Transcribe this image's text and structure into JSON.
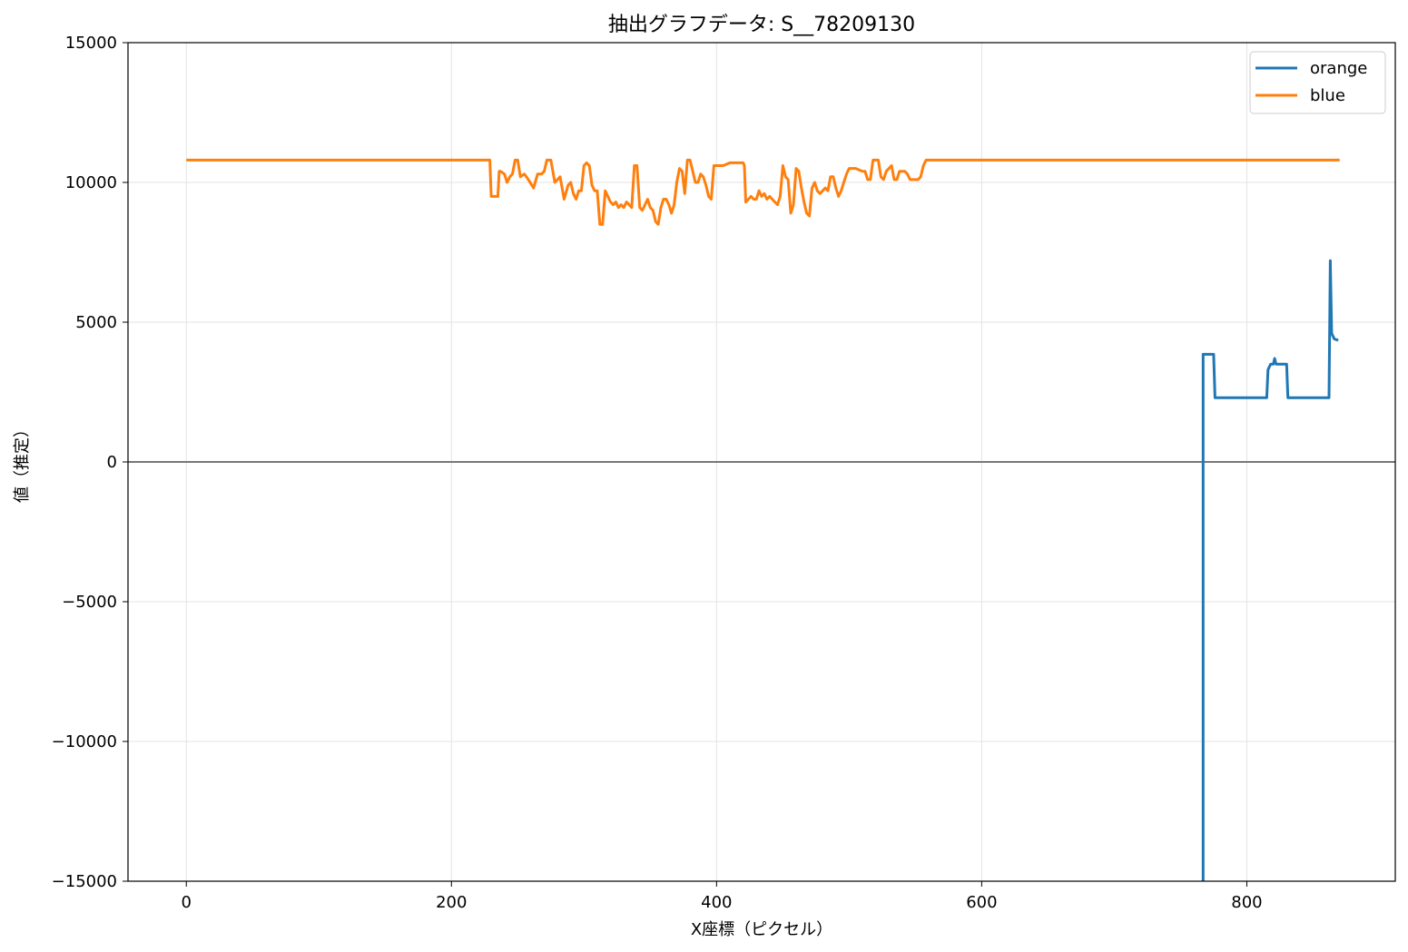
{
  "chart_data": {
    "type": "line",
    "title": "抽出グラフデータ: S__78209130",
    "xlabel": "X座標（ピクセル）",
    "ylabel": "値（推定）",
    "xlim": [
      -44,
      912
    ],
    "ylim": [
      -15000,
      15000
    ],
    "xticks": [
      0,
      200,
      400,
      600,
      800
    ],
    "yticks": [
      -15000,
      -10000,
      -5000,
      0,
      5000,
      10000,
      15000
    ],
    "ytick_labels": [
      "−15000",
      "−10000",
      "−5000",
      "0",
      "5000",
      "10000",
      "15000"
    ],
    "grid": true,
    "zero_line": true,
    "legend_position": "top-right",
    "series": [
      {
        "name": "orange",
        "color": "#1f77b4",
        "x": [
          767,
          767,
          768,
          775,
          776,
          815,
          816,
          818,
          820,
          821,
          822,
          823,
          830,
          831,
          862,
          863,
          864,
          866,
          869
        ],
        "y": [
          -15000,
          3850,
          3850,
          3850,
          2300,
          2300,
          3300,
          3500,
          3500,
          3700,
          3500,
          3500,
          3500,
          2300,
          2300,
          7200,
          4600,
          4400,
          4350
        ]
      },
      {
        "name": "blue",
        "color": "#ff7f0e",
        "x": [
          0,
          228,
          229,
          230,
          235,
          236,
          237,
          240,
          242,
          244,
          246,
          248,
          250,
          252,
          255,
          258,
          262,
          265,
          268,
          270,
          272,
          275,
          278,
          282,
          285,
          288,
          290,
          292,
          294,
          296,
          298,
          300,
          302,
          304,
          306,
          308,
          310,
          312,
          314,
          316,
          318,
          320,
          322,
          324,
          326,
          328,
          330,
          332,
          334,
          336,
          338,
          340,
          342,
          344,
          346,
          348,
          350,
          352,
          354,
          356,
          358,
          360,
          362,
          364,
          366,
          368,
          370,
          372,
          374,
          376,
          378,
          380,
          382,
          384,
          386,
          388,
          390,
          392,
          394,
          396,
          398,
          400,
          405,
          410,
          415,
          420,
          421,
          422,
          424,
          426,
          428,
          430,
          432,
          434,
          436,
          438,
          440,
          442,
          444,
          446,
          448,
          450,
          452,
          454,
          456,
          458,
          460,
          462,
          464,
          466,
          468,
          470,
          472,
          474,
          476,
          478,
          480,
          482,
          484,
          486,
          488,
          490,
          492,
          494,
          496,
          498,
          500,
          505,
          510,
          512,
          514,
          516,
          518,
          520,
          522,
          524,
          526,
          528,
          530,
          532,
          534,
          536,
          538,
          540,
          542,
          544,
          546,
          548,
          550,
          552,
          554,
          556,
          558,
          870
        ],
        "y": [
          10800,
          10800,
          10800,
          9500,
          9500,
          10400,
          10400,
          10300,
          10000,
          10200,
          10300,
          10800,
          10800,
          10200,
          10300,
          10100,
          9800,
          10300,
          10300,
          10400,
          10800,
          10800,
          10000,
          10200,
          9400,
          9900,
          10000,
          9600,
          9400,
          9700,
          9700,
          10600,
          10700,
          10600,
          9900,
          9700,
          9700,
          8500,
          8500,
          9700,
          9500,
          9300,
          9200,
          9300,
          9100,
          9200,
          9100,
          9300,
          9200,
          9100,
          10600,
          10600,
          9100,
          9000,
          9200,
          9400,
          9100,
          9000,
          8600,
          8500,
          9100,
          9400,
          9400,
          9200,
          8900,
          9200,
          10000,
          10500,
          10400,
          9600,
          10800,
          10800,
          10400,
          10000,
          10000,
          10300,
          10200,
          9900,
          9500,
          9400,
          10600,
          10600,
          10600,
          10700,
          10700,
          10700,
          10600,
          9300,
          9400,
          9500,
          9400,
          9400,
          9700,
          9500,
          9600,
          9400,
          9500,
          9400,
          9300,
          9200,
          9500,
          10600,
          10200,
          10100,
          8900,
          9200,
          10500,
          10400,
          9800,
          9300,
          8900,
          8800,
          9800,
          10000,
          9700,
          9600,
          9700,
          9800,
          9700,
          10200,
          10200,
          9800,
          9500,
          9700,
          10000,
          10300,
          10500,
          10500,
          10400,
          10400,
          10100,
          10100,
          10800,
          10800,
          10800,
          10200,
          10100,
          10400,
          10500,
          10600,
          10100,
          10100,
          10400,
          10400,
          10400,
          10300,
          10100,
          10100,
          10100,
          10100,
          10200,
          10600,
          10800,
          10800
        ]
      }
    ]
  }
}
